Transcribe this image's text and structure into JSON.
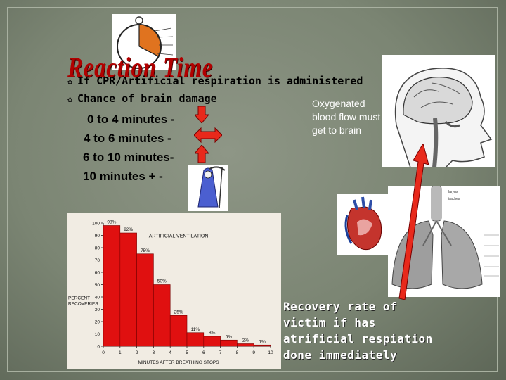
{
  "slide": {
    "title": "Reaction Time",
    "bullets": [
      "If CPR/Artificial respiration is administered",
      "Chance of brain damage"
    ],
    "timeline": [
      {
        "label": "0 to 4 minutes -",
        "icon": "down-arrow-icon"
      },
      {
        "label": "4 to 6 minutes -",
        "icon": "double-arrow-icon"
      },
      {
        "label": "6 to 10 minutes-",
        "icon": "up-arrow-icon"
      },
      {
        "label": "10 minutes +  -",
        "icon": "grim-reaper-icon"
      }
    ],
    "oxygen_note": "Oxygenated blood flow must get to brain",
    "recovery_note": [
      "Recovery rate of",
      "victim if has",
      "atrificial respiation",
      "done immediately"
    ],
    "colors": {
      "title_red": "#b10000",
      "bar_red": "#e01010",
      "arrow_red": "#e8291b"
    },
    "lung_labels": [
      "larynx",
      "trachea"
    ]
  },
  "chart_data": {
    "type": "bar",
    "title": "ARTIFICIAL VENTILATION",
    "xlabel": "MINUTES AFTER BREATHING STOPS",
    "ylabel": "PERCENT RECOVERIES",
    "categories": [
      "0",
      "1",
      "2",
      "3",
      "4",
      "5",
      "6",
      "7",
      "8",
      "9"
    ],
    "values": [
      98,
      92,
      75,
      50,
      25,
      11,
      8,
      5,
      2,
      1
    ],
    "value_labels": [
      "98%",
      "92%",
      "75%",
      "50%",
      "25%",
      "11%",
      "8%",
      "5%",
      "2%",
      "1%"
    ],
    "xticks": [
      "0",
      "1",
      "2",
      "3",
      "4",
      "5",
      "6",
      "7",
      "8",
      "9",
      "10"
    ],
    "yticks": [
      "0",
      "10",
      "20",
      "30",
      "40",
      "50",
      "60",
      "70",
      "80",
      "90",
      "100"
    ],
    "ylim": [
      0,
      100
    ],
    "xlim": [
      0,
      10
    ],
    "grid": false
  }
}
